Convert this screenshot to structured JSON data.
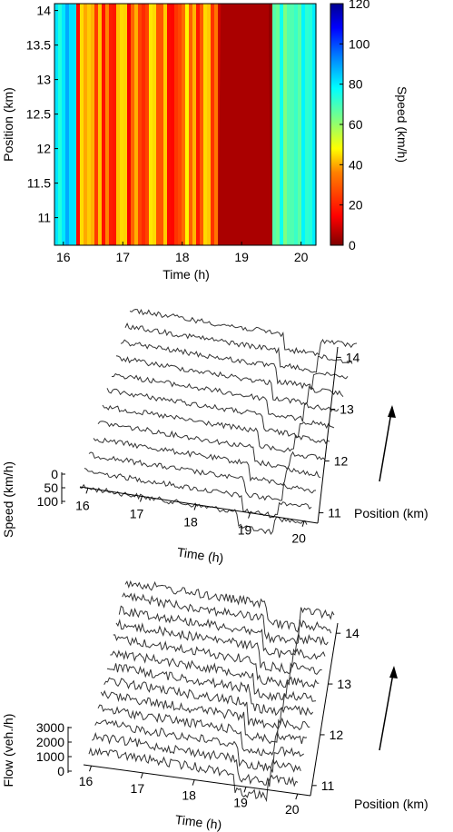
{
  "chart_data": [
    {
      "type": "heatmap",
      "xlabel": "Time (h)",
      "ylabel": "Position (km)",
      "colorbar_label": "Speed (km/h)",
      "x_ticks": [
        "16",
        "17",
        "18",
        "19",
        "20"
      ],
      "y_ticks": [
        "11",
        "11.5",
        "12",
        "12.5",
        "13",
        "13.5",
        "14"
      ],
      "colorbar_ticks": [
        "0",
        "20",
        "40",
        "60",
        "80",
        "100",
        "120"
      ],
      "xlim": [
        15.85,
        20.25
      ],
      "ylim": [
        10.6,
        14.1
      ],
      "clim": [
        0,
        120
      ],
      "colormap": [
        "#7f0000",
        "#ff0000",
        "#ff8000",
        "#ffff00",
        "#80ff80",
        "#00ffff",
        "#0080ff",
        "#0000ff",
        "#00008f"
      ],
      "regions": [
        {
          "t_start": 15.85,
          "t_end": 16.2,
          "speed_kmh": 75
        },
        {
          "t_start": 16.2,
          "t_end": 18.6,
          "speed_kmh": 25
        },
        {
          "t_start": 18.6,
          "t_end": 19.5,
          "speed_kmh": 5
        },
        {
          "t_start": 19.5,
          "t_end": 20.25,
          "speed_kmh": 70
        }
      ]
    },
    {
      "type": "line",
      "xlabel": "Time (h)",
      "ylabel": "Speed (km/h)",
      "zlabel": "Position (km)",
      "x_ticks": [
        "16",
        "17",
        "18",
        "19",
        "20"
      ],
      "y_ticks": [
        "0",
        "50",
        "100"
      ],
      "z_ticks": [
        "11",
        "12",
        "13",
        "14"
      ],
      "series_count": 12,
      "positions_km": [
        10.9,
        11.5,
        11.9,
        12.2,
        12.4,
        12.6,
        12.8,
        12.9,
        13.1,
        13.5,
        13.8,
        14.0
      ],
      "free_flow_speed_kmh": 95,
      "congested_speed_kmh": 20,
      "congestion_window_h": [
        18.85,
        19.55
      ]
    },
    {
      "type": "line",
      "xlabel": "Time (h)",
      "ylabel": "Flow (veh./h)",
      "zlabel": "Position (km)",
      "x_ticks": [
        "16",
        "17",
        "18",
        "19",
        "20"
      ],
      "y_ticks": [
        "0",
        "1000",
        "2000",
        "3000"
      ],
      "z_ticks": [
        "11",
        "12",
        "13",
        "14"
      ],
      "series_count": 13,
      "positions_km": [
        10.9,
        11.3,
        11.6,
        11.9,
        12.1,
        12.3,
        12.5,
        12.7,
        12.9,
        13.1,
        13.5,
        13.8,
        14.0
      ],
      "typical_flow_veh_h": 1800,
      "congested_flow_veh_h": 1500,
      "congestion_window_h": [
        18.85,
        19.55
      ]
    }
  ]
}
